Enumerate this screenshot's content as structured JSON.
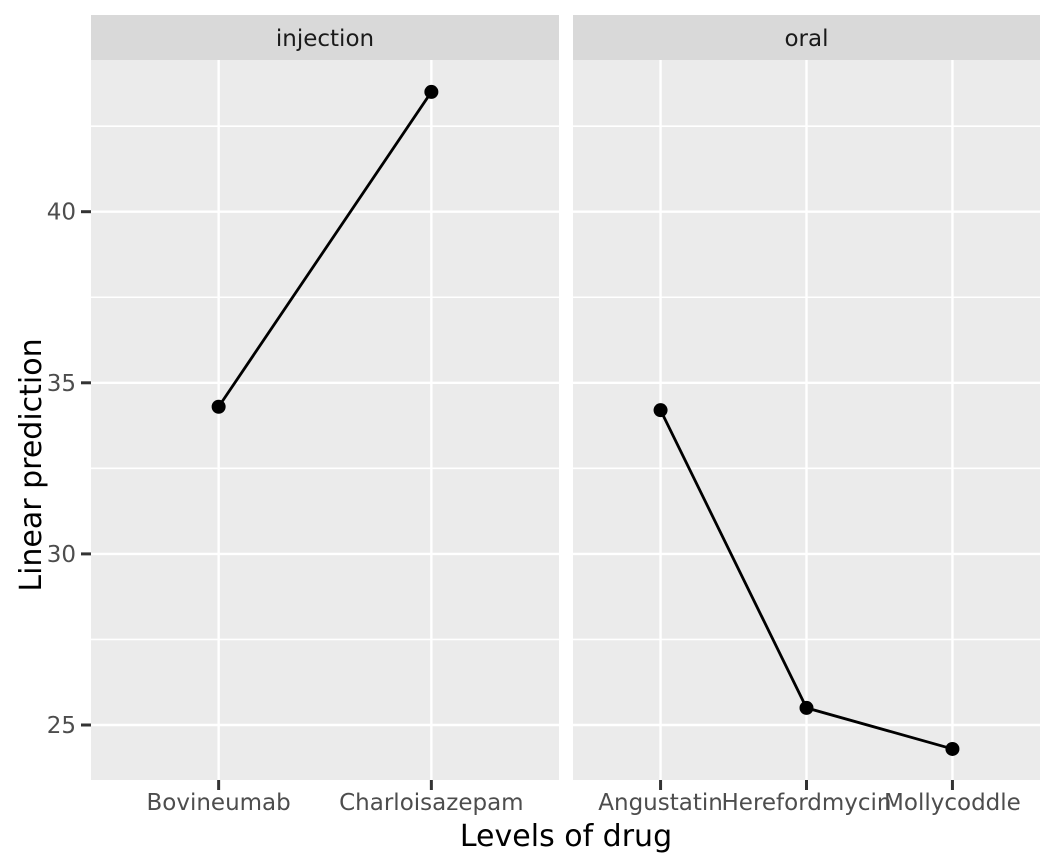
{
  "chart_data": {
    "type": "line",
    "title": "",
    "xlabel": "Levels of drug",
    "ylabel": "Linear prediction",
    "facets": [
      {
        "label": "injection",
        "categories": [
          "Bovineumab",
          "Charloisazepam"
        ],
        "values": [
          34.3,
          43.5
        ]
      },
      {
        "label": "oral",
        "categories": [
          "Angustatin",
          "Herefordmycin",
          "Mollycoddle"
        ],
        "values": [
          34.2,
          25.5,
          24.3
        ]
      }
    ],
    "y_ticks": [
      40,
      35,
      30,
      25
    ],
    "y_minor_ticks": [
      42.5,
      37.5,
      32.5,
      27.5
    ],
    "ylim": [
      23.4,
      44.4
    ],
    "grid": "on",
    "legend": "none",
    "marker": "point",
    "style": {
      "background": "#FFFFFF",
      "panel_bg": "#EBEBEB",
      "strip_bg": "#D9D9D9",
      "grid_color": "#FFFFFF",
      "line_color": "#000000",
      "point_color": "#000000",
      "axis_text_color": "#4D4D4D",
      "strip_text_color": "#1A1A1A",
      "axis_title_color": "#000000",
      "tick_mark_color": "#333333"
    }
  }
}
